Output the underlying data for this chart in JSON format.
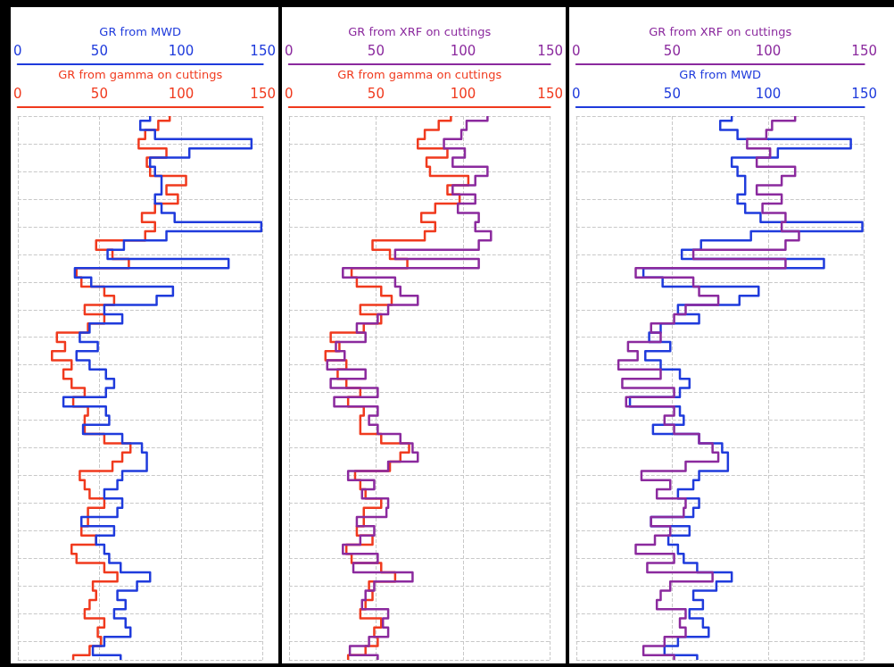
{
  "chart_data": [
    {
      "type": "step",
      "orientation": "horizontal",
      "xlabel": "GR from gamma on cuttings",
      "x2label": "GR from MWD",
      "xlim": [
        0,
        150
      ],
      "xticks": [
        0,
        50,
        100,
        150
      ],
      "x2lim": [
        0,
        150
      ],
      "x2ticks": [
        0,
        50,
        100,
        150
      ],
      "grid": true,
      "marker": "none",
      "tick_labels": "x",
      "categories": [
        null,
        null,
        null,
        null,
        null,
        null,
        null,
        null,
        null,
        null,
        null,
        null,
        null,
        null,
        null,
        null,
        null,
        null,
        null,
        null,
        null,
        null,
        null,
        null,
        null,
        null,
        null,
        null,
        null,
        null,
        null,
        null,
        null,
        null,
        null,
        null,
        null,
        null,
        null,
        null,
        null,
        null,
        null,
        null,
        null,
        null,
        null,
        null,
        null,
        null,
        null,
        null,
        null,
        null,
        null,
        null,
        null,
        null,
        null,
        null
      ],
      "series": [
        {
          "color": "#f03a1e",
          "values": [
            93,
            86,
            78,
            74,
            91,
            79,
            81,
            103,
            91,
            98,
            84,
            76,
            84,
            78,
            48,
            58,
            68,
            36,
            39,
            53,
            59,
            41,
            53,
            43,
            24,
            29,
            21,
            33,
            28,
            33,
            41,
            34,
            43,
            41,
            41,
            53,
            69,
            64,
            58,
            38,
            41,
            44,
            53,
            43,
            43,
            39,
            48,
            33,
            36,
            53,
            61,
            46,
            48,
            44,
            41,
            53,
            49,
            51,
            44,
            34
          ]
        },
        {
          "color": "#1f3bdc",
          "axis": "x2",
          "values": [
            81,
            75,
            84,
            143,
            105,
            81,
            84,
            88,
            88,
            84,
            88,
            96,
            149,
            91,
            65,
            55,
            129,
            35,
            45,
            95,
            85,
            53,
            64,
            44,
            38,
            49,
            36,
            44,
            54,
            59,
            54,
            28,
            54,
            56,
            40,
            64,
            76,
            79,
            79,
            64,
            61,
            53,
            64,
            61,
            39,
            59,
            48,
            53,
            56,
            63,
            81,
            73,
            61,
            66,
            59,
            66,
            69,
            53,
            46,
            63
          ]
        }
      ]
    },
    {
      "type": "step",
      "orientation": "horizontal",
      "xlabel": "GR from gamma on cuttings",
      "x2label": "GR from XRF on cuttings",
      "xlim": [
        0,
        150
      ],
      "xticks": [
        0,
        50,
        100,
        150
      ],
      "x2lim": [
        0,
        150
      ],
      "x2ticks": [
        0,
        50,
        100,
        150
      ],
      "grid": true,
      "marker": "none",
      "tick_labels": "x",
      "categories": [
        null,
        null,
        null,
        null,
        null,
        null,
        null,
        null,
        null,
        null,
        null,
        null,
        null,
        null,
        null,
        null,
        null,
        null,
        null,
        null,
        null,
        null,
        null,
        null,
        null,
        null,
        null,
        null,
        null,
        null,
        null,
        null,
        null,
        null,
        null,
        null,
        null,
        null,
        null,
        null,
        null,
        null,
        null,
        null,
        null,
        null,
        null,
        null,
        null,
        null,
        null,
        null,
        null,
        null,
        null,
        null,
        null,
        null,
        null,
        null
      ],
      "series": [
        {
          "color": "#f03a1e",
          "values": [
            93,
            86,
            78,
            74,
            91,
            79,
            81,
            103,
            91,
            98,
            84,
            76,
            84,
            78,
            48,
            58,
            68,
            36,
            39,
            53,
            59,
            41,
            53,
            43,
            24,
            29,
            21,
            33,
            28,
            33,
            41,
            34,
            43,
            41,
            41,
            53,
            69,
            64,
            58,
            38,
            41,
            44,
            53,
            43,
            43,
            39,
            48,
            33,
            36,
            53,
            61,
            46,
            48,
            44,
            41,
            53,
            49,
            51,
            44,
            34
          ]
        },
        {
          "color": "#8b2a9e",
          "axis": "x2",
          "values": [
            114,
            102,
            99,
            89,
            101,
            94,
            114,
            107,
            94,
            107,
            97,
            109,
            107,
            116,
            109,
            61,
            109,
            31,
            61,
            64,
            74,
            57,
            51,
            39,
            44,
            27,
            32,
            22,
            44,
            24,
            51,
            26,
            51,
            46,
            51,
            64,
            71,
            74,
            57,
            34,
            49,
            42,
            57,
            56,
            39,
            49,
            41,
            31,
            51,
            37,
            71,
            49,
            44,
            42,
            57,
            54,
            57,
            46,
            35,
            51
          ]
        }
      ]
    },
    {
      "type": "step",
      "orientation": "horizontal",
      "xlabel": "GR from MWD",
      "x2label": "GR from XRF on cuttings",
      "xlim": [
        0,
        150
      ],
      "xticks": [
        0,
        50,
        100,
        150
      ],
      "x2lim": [
        0,
        150
      ],
      "x2ticks": [
        0,
        50,
        100,
        150
      ],
      "grid": true,
      "marker": "none",
      "tick_labels": "x",
      "categories": [
        null,
        null,
        null,
        null,
        null,
        null,
        null,
        null,
        null,
        null,
        null,
        null,
        null,
        null,
        null,
        null,
        null,
        null,
        null,
        null,
        null,
        null,
        null,
        null,
        null,
        null,
        null,
        null,
        null,
        null,
        null,
        null,
        null,
        null,
        null,
        null,
        null,
        null,
        null,
        null,
        null,
        null,
        null,
        null,
        null,
        null,
        null,
        null,
        null,
        null,
        null,
        null,
        null,
        null,
        null,
        null,
        null,
        null,
        null,
        null
      ],
      "series": [
        {
          "color": "#1f3bdc",
          "values": [
            81,
            75,
            84,
            143,
            105,
            81,
            84,
            88,
            88,
            84,
            88,
            96,
            149,
            91,
            65,
            55,
            129,
            35,
            45,
            95,
            85,
            53,
            64,
            44,
            38,
            49,
            36,
            44,
            54,
            59,
            54,
            28,
            54,
            56,
            40,
            64,
            76,
            79,
            79,
            64,
            61,
            53,
            64,
            61,
            39,
            59,
            48,
            53,
            56,
            63,
            81,
            73,
            61,
            66,
            59,
            66,
            69,
            53,
            46,
            63
          ]
        },
        {
          "color": "#8b2a9e",
          "axis": "x2",
          "values": [
            114,
            102,
            99,
            89,
            101,
            94,
            114,
            107,
            94,
            107,
            97,
            109,
            107,
            116,
            109,
            61,
            109,
            31,
            61,
            64,
            74,
            57,
            51,
            39,
            44,
            27,
            32,
            22,
            44,
            24,
            51,
            26,
            51,
            46,
            51,
            64,
            71,
            74,
            57,
            34,
            49,
            42,
            57,
            56,
            39,
            49,
            41,
            31,
            51,
            37,
            71,
            49,
            44,
            42,
            57,
            54,
            57,
            46,
            35,
            51
          ]
        }
      ]
    }
  ]
}
